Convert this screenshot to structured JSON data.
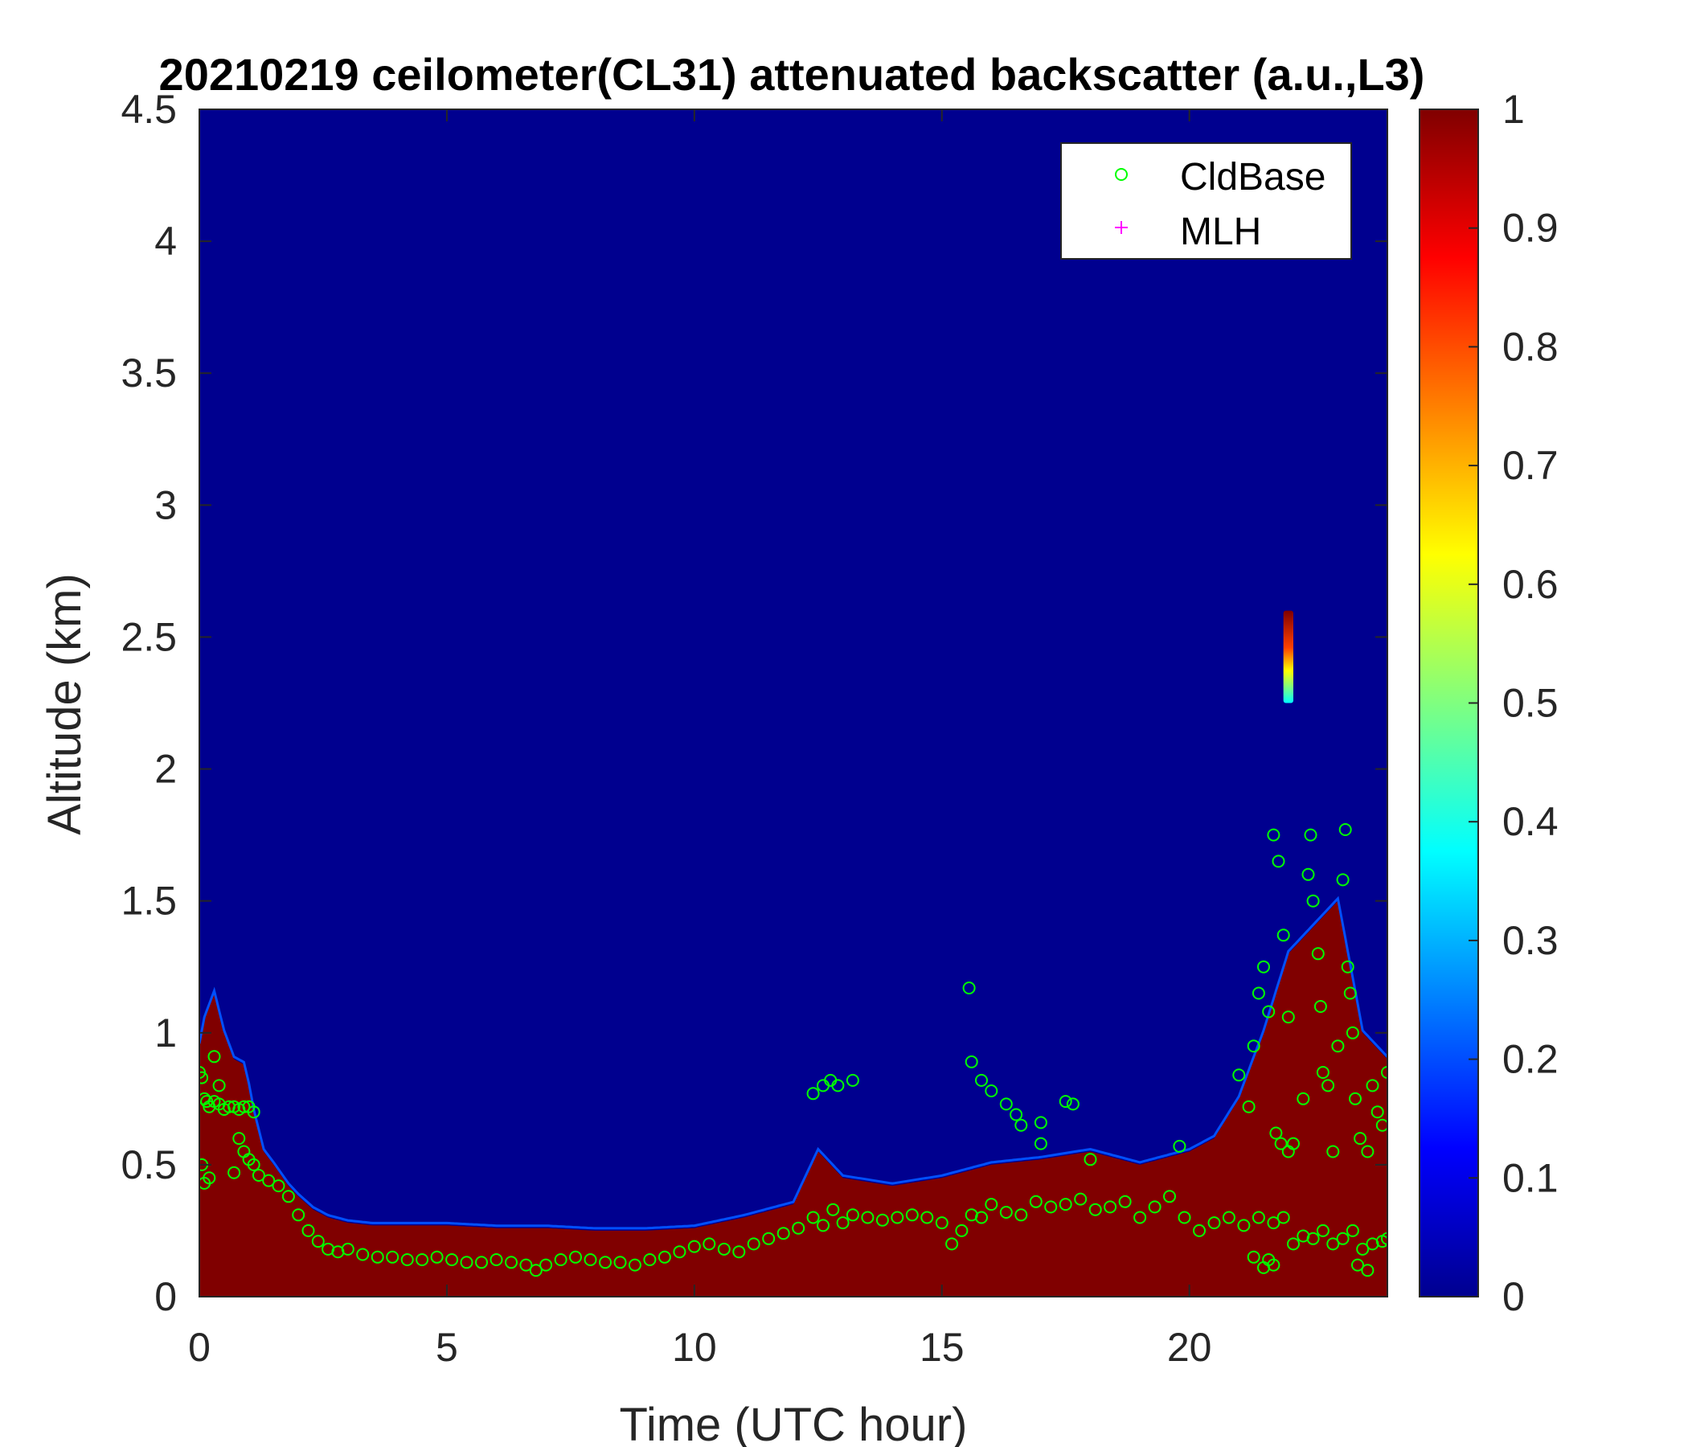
{
  "chart_data": {
    "type": "heatmap",
    "title": "20210219 ceilometer(CL31) attenuated backscatter (a.u.,L3)",
    "xlabel": "Time (UTC hour)",
    "ylabel": "Altitude (km)",
    "xlim": [
      0,
      24
    ],
    "ylim": [
      0,
      4.5
    ],
    "x_ticks": [
      0,
      5,
      10,
      15,
      20
    ],
    "y_ticks": [
      0,
      0.5,
      1,
      1.5,
      2,
      2.5,
      3,
      3.5,
      4,
      4.5
    ],
    "x_tick_labels": [
      "0",
      "5",
      "10",
      "15",
      "20"
    ],
    "y_tick_labels": [
      "0",
      "0.5",
      "1",
      "1.5",
      "2",
      "2.5",
      "3",
      "3.5",
      "4",
      "4.5"
    ],
    "colorbar": {
      "colormap": "jet",
      "limits": [
        0,
        1
      ],
      "ticks": [
        0,
        0.1,
        0.2,
        0.3,
        0.4,
        0.5,
        0.6,
        0.7,
        0.8,
        0.9,
        1
      ],
      "tick_labels": [
        "0",
        "0.1",
        "0.2",
        "0.3",
        "0.4",
        "0.5",
        "0.6",
        "0.7",
        "0.8",
        "0.9",
        "1"
      ]
    },
    "background_value": 0,
    "grid": false,
    "legend": {
      "placement": "top-right",
      "entries": [
        {
          "label": "CldBase",
          "marker": "circle",
          "color": "#00ff00"
        },
        {
          "label": "MLH",
          "marker": "plus",
          "color": "#ff00ff"
        }
      ]
    },
    "high_backscatter_layer_top_km": {
      "time": [
        0,
        0.1,
        0.3,
        0.5,
        0.7,
        0.9,
        1.0,
        1.1,
        1.3,
        1.5,
        1.8,
        2.0,
        2.3,
        2.6,
        3.0,
        3.5,
        4.0,
        5.0,
        6.0,
        7.0,
        8.0,
        9.0,
        10.0,
        11.0,
        12.0,
        12.5,
        13.0,
        14.0,
        15.0,
        16.0,
        17.0,
        18.0,
        19.0,
        20.0,
        20.5,
        21.0,
        21.5,
        22.0,
        22.5,
        23.0,
        23.5,
        24.0
      ],
      "top": [
        0.95,
        1.05,
        1.15,
        1.0,
        0.9,
        0.88,
        0.8,
        0.7,
        0.55,
        0.5,
        0.42,
        0.38,
        0.33,
        0.3,
        0.28,
        0.27,
        0.27,
        0.27,
        0.26,
        0.26,
        0.25,
        0.25,
        0.26,
        0.3,
        0.35,
        0.55,
        0.45,
        0.42,
        0.45,
        0.5,
        0.52,
        0.55,
        0.5,
        0.55,
        0.6,
        0.75,
        1.0,
        1.3,
        1.4,
        1.5,
        1.0,
        0.9
      ]
    },
    "elevated_cloud_patch": {
      "time": [
        21.9,
        22.1
      ],
      "altitude_km": [
        2.25,
        2.6
      ],
      "value_range": [
        0.35,
        1.0
      ]
    },
    "series": [
      {
        "name": "CldBase",
        "points": [
          [
            0.0,
            0.85
          ],
          [
            0.05,
            0.83
          ],
          [
            0.1,
            0.75
          ],
          [
            0.15,
            0.74
          ],
          [
            0.2,
            0.72
          ],
          [
            0.3,
            0.74
          ],
          [
            0.4,
            0.73
          ],
          [
            0.5,
            0.71
          ],
          [
            0.6,
            0.72
          ],
          [
            0.7,
            0.72
          ],
          [
            0.8,
            0.71
          ],
          [
            0.9,
            0.72
          ],
          [
            1.0,
            0.72
          ],
          [
            1.1,
            0.7
          ],
          [
            0.05,
            0.5
          ],
          [
            0.1,
            0.43
          ],
          [
            0.2,
            0.45
          ],
          [
            0.3,
            0.91
          ],
          [
            0.4,
            0.8
          ],
          [
            0.7,
            0.47
          ],
          [
            0.8,
            0.6
          ],
          [
            0.9,
            0.55
          ],
          [
            1.0,
            0.52
          ],
          [
            1.1,
            0.5
          ],
          [
            1.2,
            0.46
          ],
          [
            1.4,
            0.44
          ],
          [
            1.6,
            0.42
          ],
          [
            1.8,
            0.38
          ],
          [
            2.0,
            0.31
          ],
          [
            2.2,
            0.25
          ],
          [
            2.4,
            0.21
          ],
          [
            2.6,
            0.18
          ],
          [
            2.8,
            0.17
          ],
          [
            3.0,
            0.18
          ],
          [
            3.3,
            0.16
          ],
          [
            3.6,
            0.15
          ],
          [
            3.9,
            0.15
          ],
          [
            4.2,
            0.14
          ],
          [
            4.5,
            0.14
          ],
          [
            4.8,
            0.15
          ],
          [
            5.1,
            0.14
          ],
          [
            5.4,
            0.13
          ],
          [
            5.7,
            0.13
          ],
          [
            6.0,
            0.14
          ],
          [
            6.3,
            0.13
          ],
          [
            6.6,
            0.12
          ],
          [
            6.8,
            0.1
          ],
          [
            7.0,
            0.12
          ],
          [
            7.3,
            0.14
          ],
          [
            7.6,
            0.15
          ],
          [
            7.9,
            0.14
          ],
          [
            8.2,
            0.13
          ],
          [
            8.5,
            0.13
          ],
          [
            8.8,
            0.12
          ],
          [
            9.1,
            0.14
          ],
          [
            9.4,
            0.15
          ],
          [
            9.7,
            0.17
          ],
          [
            10.0,
            0.19
          ],
          [
            10.3,
            0.2
          ],
          [
            10.6,
            0.18
          ],
          [
            10.9,
            0.17
          ],
          [
            11.2,
            0.2
          ],
          [
            11.5,
            0.22
          ],
          [
            11.8,
            0.24
          ],
          [
            12.1,
            0.26
          ],
          [
            12.4,
            0.3
          ],
          [
            12.6,
            0.27
          ],
          [
            12.8,
            0.33
          ],
          [
            13.0,
            0.28
          ],
          [
            13.2,
            0.31
          ],
          [
            13.5,
            0.3
          ],
          [
            13.8,
            0.29
          ],
          [
            14.1,
            0.3
          ],
          [
            14.4,
            0.31
          ],
          [
            14.7,
            0.3
          ],
          [
            15.0,
            0.28
          ],
          [
            15.2,
            0.2
          ],
          [
            15.4,
            0.25
          ],
          [
            15.6,
            0.31
          ],
          [
            15.8,
            0.3
          ],
          [
            16.0,
            0.35
          ],
          [
            16.3,
            0.32
          ],
          [
            16.6,
            0.31
          ],
          [
            16.9,
            0.36
          ],
          [
            17.2,
            0.34
          ],
          [
            17.5,
            0.35
          ],
          [
            17.8,
            0.37
          ],
          [
            18.1,
            0.33
          ],
          [
            18.4,
            0.34
          ],
          [
            18.7,
            0.36
          ],
          [
            19.0,
            0.3
          ],
          [
            19.3,
            0.34
          ],
          [
            19.6,
            0.38
          ],
          [
            19.9,
            0.3
          ],
          [
            20.2,
            0.25
          ],
          [
            20.5,
            0.28
          ],
          [
            20.8,
            0.3
          ],
          [
            21.1,
            0.27
          ],
          [
            21.4,
            0.3
          ],
          [
            21.7,
            0.28
          ],
          [
            21.9,
            0.3
          ],
          [
            22.1,
            0.2
          ],
          [
            22.3,
            0.23
          ],
          [
            22.5,
            0.22
          ],
          [
            22.7,
            0.25
          ],
          [
            22.9,
            0.2
          ],
          [
            23.1,
            0.22
          ],
          [
            23.3,
            0.25
          ],
          [
            23.5,
            0.18
          ],
          [
            23.7,
            0.2
          ],
          [
            23.9,
            0.21
          ],
          [
            24.0,
            0.22
          ],
          [
            12.4,
            0.77
          ],
          [
            12.6,
            0.8
          ],
          [
            12.75,
            0.82
          ],
          [
            12.9,
            0.8
          ],
          [
            13.2,
            0.82
          ],
          [
            15.55,
            1.17
          ],
          [
            15.6,
            0.89
          ],
          [
            15.8,
            0.82
          ],
          [
            16.0,
            0.78
          ],
          [
            16.3,
            0.73
          ],
          [
            16.5,
            0.69
          ],
          [
            16.6,
            0.65
          ],
          [
            17.0,
            0.66
          ],
          [
            17.5,
            0.74
          ],
          [
            17.65,
            0.73
          ],
          [
            17.0,
            0.58
          ],
          [
            18.0,
            0.52
          ],
          [
            19.8,
            0.57
          ],
          [
            21.0,
            0.84
          ],
          [
            21.2,
            0.72
          ],
          [
            21.3,
            0.95
          ],
          [
            21.4,
            1.15
          ],
          [
            21.5,
            1.25
          ],
          [
            21.6,
            1.08
          ],
          [
            21.7,
            1.75
          ],
          [
            21.8,
            1.65
          ],
          [
            21.9,
            1.37
          ],
          [
            22.0,
            1.06
          ],
          [
            21.75,
            0.62
          ],
          [
            21.85,
            0.58
          ],
          [
            22.0,
            0.55
          ],
          [
            22.1,
            0.58
          ],
          [
            22.3,
            0.75
          ],
          [
            22.4,
            1.6
          ],
          [
            22.45,
            1.75
          ],
          [
            22.5,
            1.5
          ],
          [
            22.6,
            1.3
          ],
          [
            22.65,
            1.1
          ],
          [
            22.7,
            0.85
          ],
          [
            22.8,
            0.8
          ],
          [
            22.9,
            0.55
          ],
          [
            23.0,
            0.95
          ],
          [
            23.1,
            1.58
          ],
          [
            23.15,
            1.77
          ],
          [
            23.2,
            1.25
          ],
          [
            23.25,
            1.15
          ],
          [
            23.3,
            1.0
          ],
          [
            23.35,
            0.75
          ],
          [
            23.45,
            0.6
          ],
          [
            23.6,
            0.55
          ],
          [
            23.7,
            0.8
          ],
          [
            23.8,
            0.7
          ],
          [
            23.9,
            0.65
          ],
          [
            24.0,
            0.85
          ],
          [
            21.3,
            0.15
          ],
          [
            21.5,
            0.11
          ],
          [
            21.6,
            0.14
          ],
          [
            21.7,
            0.12
          ],
          [
            23.4,
            0.12
          ],
          [
            23.6,
            0.1
          ]
        ]
      }
    ]
  }
}
